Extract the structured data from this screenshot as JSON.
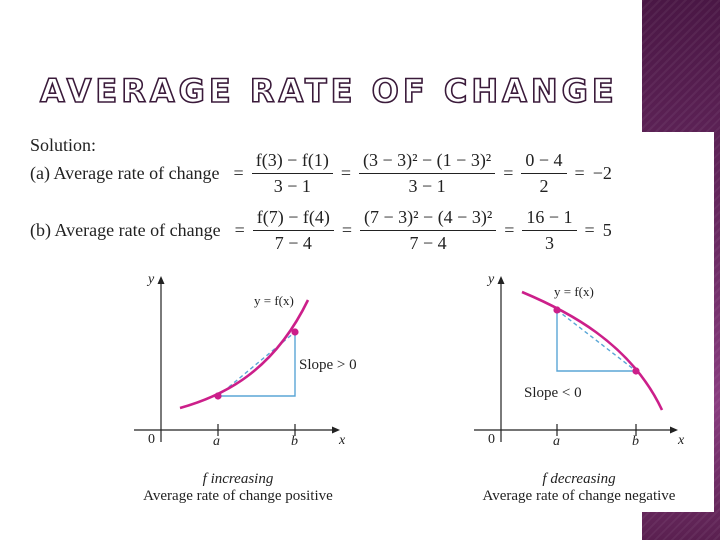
{
  "slide": {
    "title": "AVERAGE RATE OF CHANGE",
    "accent_color": "#6a2a62"
  },
  "solution": {
    "label": "Solution:",
    "part_a": {
      "label": "(a) Average rate of change",
      "frac1_num": "f(3) − f(1)",
      "frac1_den": "3 − 1",
      "frac2_num": "(3 − 3)² − (1 − 3)²",
      "frac2_den": "3 − 1",
      "frac3_num": "0 − 4",
      "frac3_den": "2",
      "result": "−2"
    },
    "part_b": {
      "label": "(b) Average rate of change",
      "frac1_num": "f(7) − f(4)",
      "frac1_den": "7 − 4",
      "frac2_num": "(7 − 3)² − (4 − 3)²",
      "frac2_den": "7 − 4",
      "frac3_num": "16 − 1",
      "frac3_den": "3",
      "result": "5"
    }
  },
  "graphs": [
    {
      "y_axis": "y",
      "x_axis": "x",
      "origin": "0",
      "point_a": "a",
      "point_b": "b",
      "curve_label": "y = f(x)",
      "slope_label": "Slope > 0",
      "caption_line1": "f increasing",
      "caption_line2": "Average rate of change positive",
      "curve_color": "#cc1f8a",
      "secant_color": "#5aa6d6"
    },
    {
      "y_axis": "y",
      "x_axis": "x",
      "origin": "0",
      "point_a": "a",
      "point_b": "b",
      "curve_label": "y = f(x)",
      "slope_label": "Slope < 0",
      "caption_line1": "f decreasing",
      "caption_line2": "Average rate of change negative",
      "curve_color": "#cc1f8a",
      "secant_color": "#5aa6d6"
    }
  ]
}
